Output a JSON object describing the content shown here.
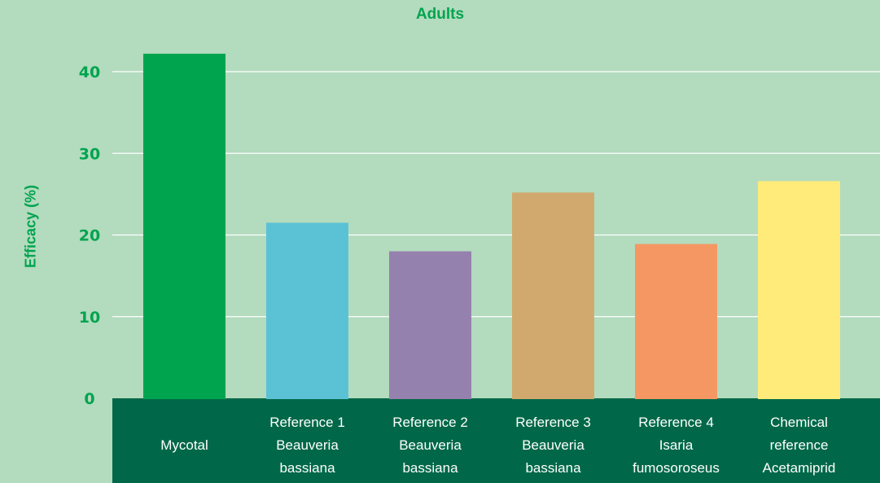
{
  "chart_data": {
    "type": "bar",
    "title": "Adults",
    "ylabel": "Efficacy (%)",
    "xlabel": "",
    "ylim": [
      0,
      42.5
    ],
    "yticks": [
      0,
      10,
      20,
      30,
      40
    ],
    "grid": true,
    "categories": [
      [
        "Mycotal"
      ],
      [
        "Reference 1",
        "Beauveria",
        "bassiana"
      ],
      [
        "Reference 2",
        "Beauveria",
        "bassiana"
      ],
      [
        "Reference 3",
        "Beauveria",
        "bassiana"
      ],
      [
        "Reference 4",
        "Isaria",
        "fumosoroseus"
      ],
      [
        "Chemical",
        "reference",
        "Acetamiprid"
      ]
    ],
    "values": [
      42.2,
      21.5,
      18.0,
      25.2,
      18.9,
      26.6
    ],
    "colors": [
      "#00a44f",
      "#5bc2d6",
      "#9581ae",
      "#d1a96e",
      "#f59763",
      "#ffeb7a"
    ],
    "background_color": "#b3dbbe",
    "category_band_color": "#006848",
    "accent_color": "#00a44f"
  }
}
